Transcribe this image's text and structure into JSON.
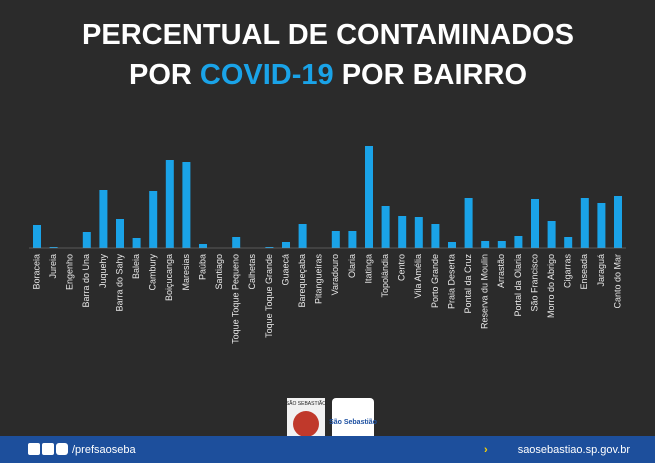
{
  "chart_data": {
    "type": "bar",
    "title": [
      "PERCENTUAL DE CONTAMINADOS",
      "POR ",
      "COVID-19",
      " POR BAIRRO"
    ],
    "categories": [
      "Boraceia",
      "Jureia",
      "Engenho",
      "Barra do Una",
      "Juquehy",
      "Barra do Sahy",
      "Baleia",
      "Cambury",
      "Boiçucanga",
      "Maresias",
      "Paúba",
      "Santiago",
      "Toque Toque Pequeno",
      "Calhetas",
      "Toque Toque Grande",
      "Guaecá",
      "Barequeçaba",
      "Pitangueiras",
      "Varadouro",
      "Olaria",
      "Itatinga",
      "Topolândia",
      "Centro",
      "Vila Amélia",
      "Porto Grande",
      "Praia Deserta",
      "Pontal da Cruz",
      "Reserva du Moulin",
      "Arrastão",
      "Portal da Olaria",
      "São Francisco",
      "Morro do Abrigo",
      "Cigarras",
      "Enseada",
      "Jaraguá",
      "Canto do Mar"
    ],
    "values": [
      23,
      1,
      0,
      16,
      58,
      29,
      10,
      57,
      88,
      86,
      4,
      0,
      11,
      0,
      1,
      6,
      24,
      0,
      17,
      17,
      102,
      42,
      32,
      31,
      24,
      6,
      50,
      7,
      7,
      12,
      49,
      27,
      11,
      50,
      45,
      52
    ],
    "color": "#1aa3e8"
  },
  "footer": {
    "social": "/prefsaoseba",
    "site": "saosebastiao.sp.gov.br",
    "logo_left": "SÃO SEBASTIÃO",
    "logo_right": "São Sebastião"
  }
}
